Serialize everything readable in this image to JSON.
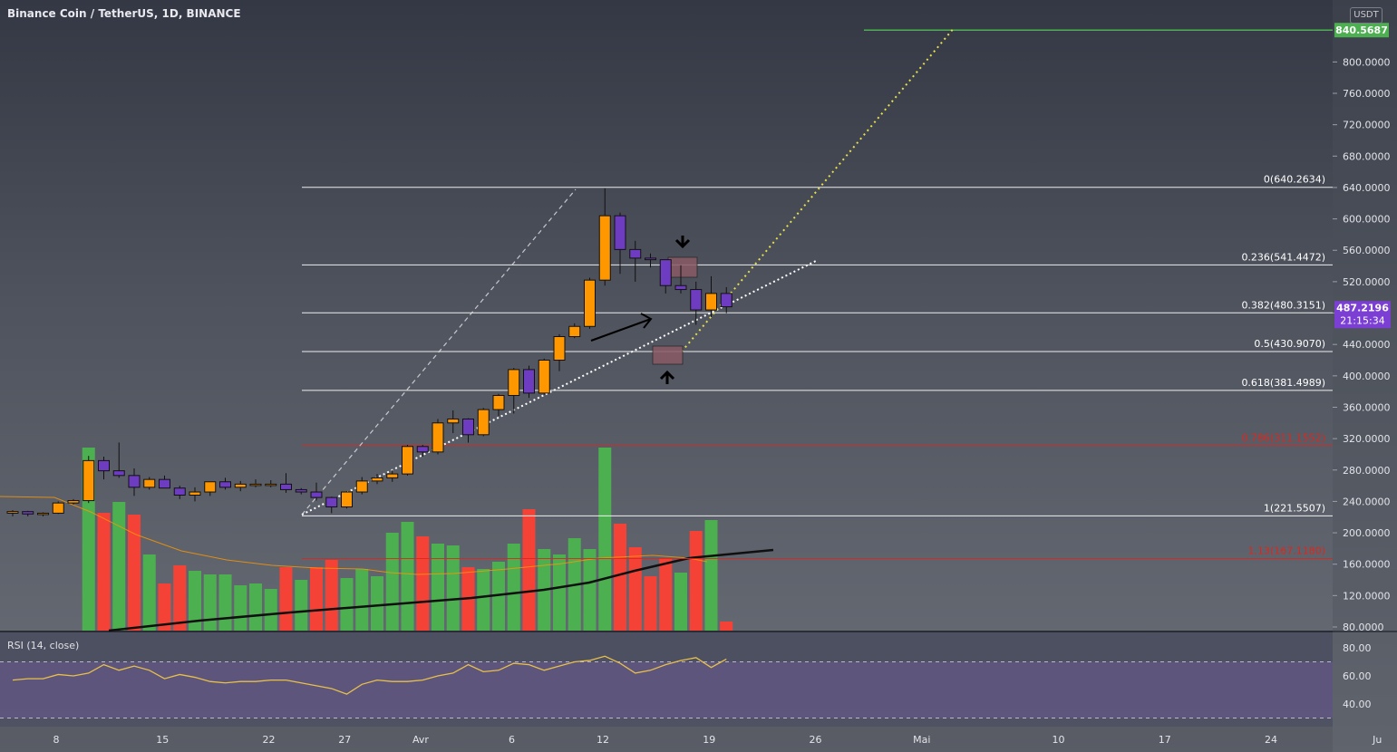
{
  "header": {
    "title": "Binance Coin / TetherUS, 1D, BINANCE",
    "currency": "USDT"
  },
  "rsi": {
    "title": "RSI (14, close)"
  },
  "colors": {
    "up": "#ff9800",
    "down": "#6e3cc0",
    "vol_up": "#4caf50",
    "vol_down": "#f44336",
    "fib": "#ffffff",
    "fib_red": "#e0261c",
    "target": "#4caf50",
    "rsi_line": "#e8c049",
    "rsi_band": "#6a5a8c"
  },
  "chart_data": {
    "type": "candlestick",
    "price_axis": {
      "ticks": [
        "80.0000",
        "120.0000",
        "160.0000",
        "200.0000",
        "240.0000",
        "280.0000",
        "320.0000",
        "360.0000",
        "400.0000",
        "440.0000",
        "480.0000",
        "520.0000",
        "560.0000",
        "600.0000",
        "640.0000",
        "680.0000",
        "720.0000",
        "760.0000",
        "800.0000"
      ],
      "range": [
        80,
        880
      ]
    },
    "time_axis": {
      "ticks": [
        "8",
        "15",
        "22",
        "27",
        "Avr",
        "6",
        "12",
        "19",
        "26",
        "Mai",
        "10",
        "17",
        "24",
        "Ju"
      ],
      "tick_index": [
        8,
        15,
        22,
        27,
        32,
        38,
        44,
        51,
        58,
        65,
        74,
        81,
        88,
        95
      ]
    },
    "candles": [
      [
        0,
        225,
        229,
        221,
        227
      ],
      [
        1,
        227,
        228,
        221,
        224
      ],
      [
        2,
        224,
        226,
        221,
        225
      ],
      [
        3,
        225,
        240,
        224,
        238
      ],
      [
        4,
        238,
        243,
        236,
        241
      ],
      [
        5,
        241,
        298,
        238,
        292
      ],
      [
        6,
        292,
        297,
        268,
        279
      ],
      [
        7,
        279,
        315,
        270,
        273
      ],
      [
        8,
        273,
        282,
        247,
        258
      ],
      [
        9,
        258,
        271,
        255,
        268
      ],
      [
        10,
        268,
        273,
        257,
        257
      ],
      [
        11,
        257,
        260,
        243,
        248
      ],
      [
        12,
        248,
        258,
        240,
        252
      ],
      [
        13,
        252,
        265,
        247,
        265
      ],
      [
        14,
        265,
        270,
        255,
        258
      ],
      [
        15,
        258,
        266,
        253,
        262
      ],
      [
        16,
        262,
        268,
        258,
        262
      ],
      [
        17,
        262,
        267,
        258,
        262
      ],
      [
        18,
        262,
        276,
        251,
        255
      ],
      [
        19,
        255,
        257,
        249,
        252
      ],
      [
        20,
        252,
        264,
        241,
        245
      ],
      [
        21,
        245,
        246,
        225,
        233
      ],
      [
        22,
        233,
        253,
        231,
        252
      ],
      [
        23,
        252,
        271,
        249,
        266
      ],
      [
        24,
        266,
        275,
        262,
        270
      ],
      [
        25,
        270,
        280,
        265,
        275
      ],
      [
        26,
        275,
        312,
        273,
        310
      ],
      [
        27,
        310,
        312,
        297,
        303
      ],
      [
        28,
        303,
        345,
        300,
        340
      ],
      [
        29,
        340,
        356,
        327,
        345
      ],
      [
        30,
        345,
        346,
        315,
        325
      ],
      [
        31,
        325,
        359,
        323,
        357
      ],
      [
        32,
        357,
        377,
        349,
        375
      ],
      [
        33,
        375,
        410,
        352,
        408
      ],
      [
        34,
        408,
        413,
        372,
        378
      ],
      [
        35,
        378,
        422,
        376,
        420
      ],
      [
        36,
        420,
        453,
        406,
        450
      ],
      [
        37,
        450,
        467,
        448,
        463
      ],
      [
        38,
        463,
        525,
        460,
        522
      ],
      [
        39,
        522,
        639,
        515,
        604
      ],
      [
        40,
        604,
        608,
        530,
        561
      ],
      [
        41,
        561,
        572,
        520,
        550
      ],
      [
        42,
        550,
        556,
        538,
        548
      ],
      [
        43,
        548,
        548,
        505,
        515
      ],
      [
        44,
        515,
        541,
        505,
        510
      ],
      [
        45,
        510,
        520,
        465,
        484
      ],
      [
        46,
        484,
        527,
        475,
        505
      ],
      [
        47,
        505,
        513,
        480,
        488
      ]
    ],
    "volume": [
      [
        0,
        0,
        "down"
      ],
      [
        1,
        0,
        "up"
      ],
      [
        2,
        0,
        "up"
      ],
      [
        3,
        0,
        "up"
      ],
      [
        4,
        0,
        "up"
      ],
      [
        5,
        202,
        "up"
      ],
      [
        6,
        130,
        "down"
      ],
      [
        7,
        142,
        "up"
      ],
      [
        8,
        128,
        "down"
      ],
      [
        9,
        84,
        "up"
      ],
      [
        10,
        52,
        "down"
      ],
      [
        11,
        72,
        "down"
      ],
      [
        12,
        66,
        "up"
      ],
      [
        13,
        62,
        "up"
      ],
      [
        14,
        62,
        "up"
      ],
      [
        15,
        50,
        "up"
      ],
      [
        16,
        52,
        "up"
      ],
      [
        17,
        46,
        "up"
      ],
      [
        18,
        70,
        "down"
      ],
      [
        19,
        56,
        "up"
      ],
      [
        20,
        70,
        "down"
      ],
      [
        21,
        78,
        "down"
      ],
      [
        22,
        58,
        "up"
      ],
      [
        23,
        68,
        "up"
      ],
      [
        24,
        60,
        "up"
      ],
      [
        25,
        108,
        "up"
      ],
      [
        26,
        120,
        "up"
      ],
      [
        27,
        104,
        "down"
      ],
      [
        28,
        96,
        "up"
      ],
      [
        29,
        94,
        "up"
      ],
      [
        30,
        70,
        "down"
      ],
      [
        31,
        68,
        "up"
      ],
      [
        32,
        76,
        "up"
      ],
      [
        33,
        96,
        "up"
      ],
      [
        34,
        134,
        "down"
      ],
      [
        35,
        90,
        "up"
      ],
      [
        36,
        84,
        "up"
      ],
      [
        37,
        102,
        "up"
      ],
      [
        38,
        90,
        "up"
      ],
      [
        39,
        202,
        "up"
      ],
      [
        40,
        118,
        "down"
      ],
      [
        41,
        92,
        "down"
      ],
      [
        42,
        60,
        "down"
      ],
      [
        43,
        80,
        "down"
      ],
      [
        44,
        64,
        "up"
      ],
      [
        45,
        110,
        "down"
      ],
      [
        46,
        122,
        "up"
      ],
      [
        47,
        10,
        "down"
      ]
    ],
    "fib_levels": [
      {
        "label": "0(640.2634)",
        "value": 640.2634,
        "color": "white"
      },
      {
        "label": "0.236(541.4472)",
        "value": 541.4472,
        "color": "white"
      },
      {
        "label": "0.382(480.3151)",
        "value": 480.3151,
        "color": "white"
      },
      {
        "label": "0.5(430.9070)",
        "value": 430.907,
        "color": "white"
      },
      {
        "label": "0.618(381.4989)",
        "value": 381.4989,
        "color": "white"
      },
      {
        "label": "0.786(311.1552)",
        "value": 311.1552,
        "color": "red"
      },
      {
        "label": "1(221.5507)",
        "value": 221.5507,
        "color": "white"
      },
      {
        "label": "1.13(167.1180)",
        "value": 167.118,
        "color": "red"
      }
    ],
    "target": {
      "label": "840.5687",
      "value": 840.5687
    },
    "last_price": {
      "label": "487.2196",
      "value": 487.2196,
      "countdown": "21:15:34"
    },
    "rsi": {
      "ticks": [
        "40.00",
        "60.00",
        "80.00"
      ],
      "range": [
        30,
        85
      ],
      "bands": [
        30,
        70
      ],
      "values": [
        57,
        58,
        58,
        61,
        60,
        62,
        68,
        64,
        67,
        64,
        58,
        61,
        59,
        56,
        55,
        56,
        56,
        57,
        57,
        55,
        53,
        51,
        47,
        54,
        57,
        56,
        56,
        57,
        60,
        62,
        68,
        63,
        64,
        69,
        68,
        64,
        67,
        70,
        71,
        74,
        69,
        62,
        64,
        68,
        71,
        73,
        66,
        72
      ]
    }
  }
}
